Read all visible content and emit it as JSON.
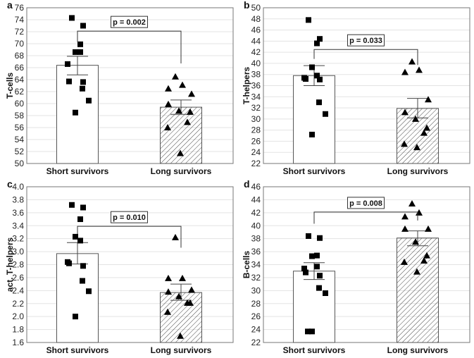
{
  "chart_data": [
    {
      "type": "bar",
      "panel": "a",
      "ylabel": "T-cells",
      "ylim": [
        50,
        76
      ],
      "ytick_step": 2,
      "decimals": 0,
      "categories": [
        "Short survivors",
        "Long survivors"
      ],
      "means": [
        66.4,
        59.4
      ],
      "error_low": [
        64.8,
        58.2
      ],
      "error_high": [
        67.9,
        60.6
      ],
      "points": [
        [
          74.3,
          73.0,
          69.9,
          68.6,
          68.6,
          66.6,
          63.7,
          63.6,
          62.5,
          60.5,
          58.5
        ],
        [
          64.5,
          63.1,
          62.5,
          61.6,
          59.9,
          58.8,
          58.6,
          56.9,
          56.0,
          51.7
        ]
      ],
      "p_label": "p = 0.002",
      "bracket_level": 72.1,
      "bracket_ends": [
        70.3,
        66.7
      ],
      "grid": true
    },
    {
      "type": "bar",
      "panel": "b",
      "ylabel": "T-helpers",
      "ylim": [
        22,
        50
      ],
      "ytick_step": 2,
      "decimals": 0,
      "categories": [
        "Short survivors",
        "Long survivors"
      ],
      "means": [
        37.8,
        31.9
      ],
      "error_low": [
        36.0,
        30.2
      ],
      "error_high": [
        39.6,
        33.7
      ],
      "points": [
        [
          47.8,
          44.4,
          43.6,
          39.3,
          37.8,
          37.4,
          37.2,
          37.1,
          33.0,
          30.9,
          27.2
        ],
        [
          40.3,
          38.8,
          38.4,
          33.5,
          31.2,
          30.0,
          28.4,
          27.5,
          25.5,
          24.9
        ]
      ],
      "p_label": "p = 0.033",
      "bracket_level": 42.5,
      "bracket_ends": [
        40.8,
        39.7
      ],
      "grid": true
    },
    {
      "type": "bar",
      "panel": "c",
      "ylabel": "act. T-helpers",
      "ylim": [
        1.6,
        4.0
      ],
      "ytick_step": 0.2,
      "decimals": 1,
      "categories": [
        "Short survivors",
        "Long survivors"
      ],
      "means": [
        2.97,
        2.37
      ],
      "error_low": [
        2.81,
        2.25
      ],
      "error_high": [
        3.14,
        2.5
      ],
      "points": [
        [
          3.72,
          3.68,
          3.5,
          3.23,
          3.17,
          2.84,
          2.82,
          2.78,
          2.55,
          2.39,
          2.0
        ],
        [
          3.22,
          2.59,
          2.59,
          2.41,
          2.38,
          2.31,
          2.21,
          2.21,
          2.07,
          1.7
        ]
      ],
      "p_label": "p = 0.010",
      "bracket_level": 3.39,
      "bracket_ends": [
        3.27,
        3.06
      ],
      "grid": true
    },
    {
      "type": "bar",
      "panel": "d",
      "ylabel": "B-cells",
      "ylim": [
        22,
        46
      ],
      "ytick_step": 2,
      "decimals": 0,
      "categories": [
        "Short survivors",
        "Long survivors"
      ],
      "means": [
        33.0,
        38.1
      ],
      "error_low": [
        31.7,
        36.9
      ],
      "error_high": [
        34.3,
        39.2
      ],
      "points": [
        [
          38.4,
          38.1,
          35.4,
          35.3,
          33.7,
          33.4,
          32.8,
          32.3,
          30.4,
          29.6,
          23.7,
          23.7
        ],
        [
          43.4,
          42.0,
          41.4,
          39.5,
          39.5,
          37.5,
          35.4,
          34.6,
          34.4,
          32.9
        ]
      ],
      "p_label": "p = 0.008",
      "bracket_level": 42.1,
      "bracket_ends": [
        40.3,
        40.8
      ],
      "grid": true
    }
  ]
}
